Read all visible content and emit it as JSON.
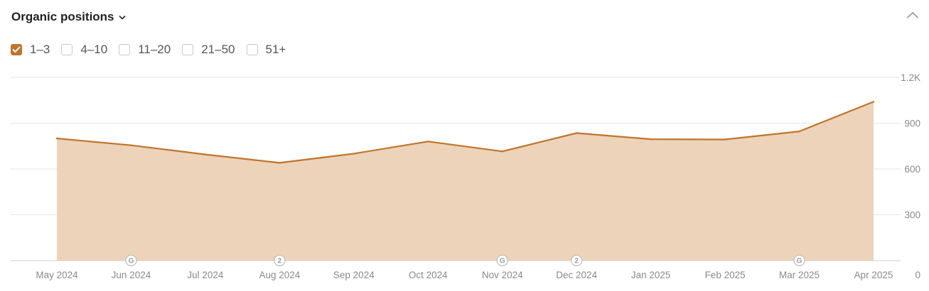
{
  "header": {
    "title": "Organic positions",
    "title_icon": "chevron-down-icon",
    "collapse_icon": "chevron-up-icon"
  },
  "filters": [
    {
      "label": "1–3",
      "checked": true
    },
    {
      "label": "4–10",
      "checked": false
    },
    {
      "label": "11–20",
      "checked": false
    },
    {
      "label": "21–50",
      "checked": false
    },
    {
      "label": "51+",
      "checked": false
    }
  ],
  "colors": {
    "accent": "#c0742c",
    "area_fill": "#ecd3b9",
    "grid": "#e6e6e6"
  },
  "chart_data": {
    "type": "area",
    "x": [
      "May 2024",
      "Jun 2024",
      "Jul 2024",
      "Aug 2024",
      "Sep 2024",
      "Oct 2024",
      "Nov 2024",
      "Dec 2024",
      "Jan 2025",
      "Feb 2025",
      "Mar 2025",
      "Apr 2025"
    ],
    "series": [
      {
        "name": "1–3",
        "values": [
          800,
          755,
          695,
          640,
          700,
          780,
          715,
          835,
          795,
          793,
          846,
          1040
        ]
      }
    ],
    "ylim": [
      0,
      1200
    ],
    "yticks": [
      0,
      300,
      600,
      900,
      1200
    ],
    "ytick_labels": [
      "0",
      "300",
      "600",
      "900",
      "1.2K"
    ],
    "grid": true,
    "y_axis_side": "right",
    "markers": [
      {
        "x": "Jun 2024",
        "label": "G",
        "icon": "google-update-icon"
      },
      {
        "x": "Aug 2024",
        "label": "2",
        "icon": "note-count-icon"
      },
      {
        "x": "Nov 2024",
        "label": "G",
        "icon": "google-update-icon"
      },
      {
        "x": "Dec 2024",
        "label": "2",
        "icon": "note-count-icon"
      },
      {
        "x": "Mar 2025",
        "label": "G",
        "icon": "google-update-icon"
      }
    ]
  }
}
